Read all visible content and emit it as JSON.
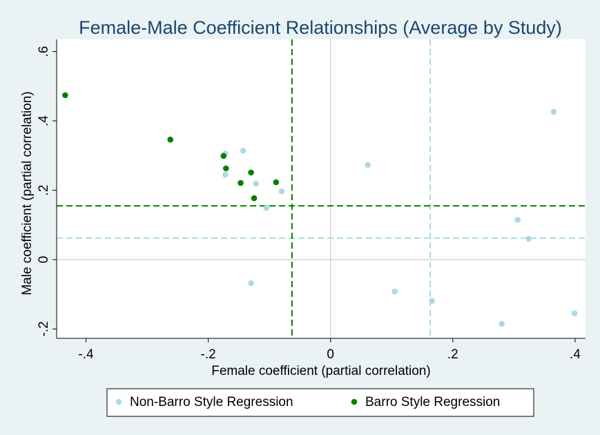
{
  "chart_data": {
    "type": "scatter",
    "title": "Female-Male Coefficient Relationships (Average by Study)",
    "x_label": "Female coefficient (partial correlation)",
    "y_label": "Male coefficient (partial correlation)",
    "xlim": [
      -0.448,
      0.417
    ],
    "ylim": [
      -0.227,
      0.635
    ],
    "xticks": [
      {
        "value": -0.4,
        "label": "-.4"
      },
      {
        "value": -0.2,
        "label": "-.2"
      },
      0,
      {
        "value": 0.2,
        "label": ".2"
      },
      {
        "value": 0.4,
        "label": ".4"
      }
    ],
    "yticks": [
      {
        "value": -0.2,
        "label": "-.2"
      },
      0,
      {
        "value": 0.2,
        "label": ".2"
      },
      {
        "value": 0.4,
        "label": ".4"
      },
      {
        "value": 0.6,
        "label": ".6"
      }
    ],
    "origin_lines": {
      "x": 0,
      "y": 0,
      "color": "#d4d4d4"
    },
    "legend_position": "bottom",
    "series": [
      {
        "name": "Non-Barro Style Regression",
        "color": "#add8e6",
        "mean_x": 0.163,
        "mean_y": 0.062,
        "x": [
          -0.172,
          -0.143,
          -0.172,
          -0.122,
          -0.08,
          -0.105,
          -0.13,
          0.061,
          0.365,
          0.306,
          0.324,
          0.105,
          0.166,
          0.28,
          0.399
        ],
        "y": [
          0.306,
          0.314,
          0.245,
          0.219,
          0.197,
          0.149,
          -0.068,
          0.273,
          0.426,
          0.115,
          0.06,
          -0.092,
          -0.119,
          -0.185,
          -0.155
        ]
      },
      {
        "name": "Barro Style Regression",
        "color": "#008000",
        "mean_x": -0.063,
        "mean_y": 0.155,
        "x": [
          -0.434,
          -0.262,
          -0.175,
          -0.171,
          -0.13,
          -0.147,
          -0.089,
          -0.125
        ],
        "y": [
          0.474,
          0.346,
          0.299,
          0.263,
          0.251,
          0.221,
          0.223,
          0.177
        ]
      }
    ]
  }
}
